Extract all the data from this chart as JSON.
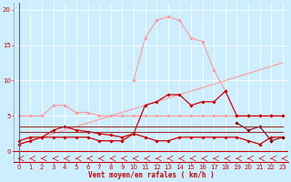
{
  "background_color": "#cceeff",
  "grid_color": "#ffffff",
  "x_labels": [
    0,
    1,
    2,
    3,
    4,
    5,
    6,
    7,
    8,
    9,
    10,
    11,
    12,
    13,
    14,
    15,
    16,
    17,
    18,
    19,
    20,
    21,
    22,
    23
  ],
  "xlabel": "Vent moyen/en rafales ( km/h )",
  "ylim": [
    -1.5,
    21
  ],
  "xlim": [
    -0.5,
    23.5
  ],
  "yticks": [
    0,
    5,
    10,
    15,
    20
  ],
  "lines": [
    {
      "color": "#ff9999",
      "linewidth": 0.8,
      "marker": "D",
      "markersize": 1.8,
      "data": [
        5,
        5,
        5,
        6.5,
        6.5,
        5.5,
        5.5,
        5,
        5,
        5,
        5,
        5,
        5,
        5,
        5,
        5,
        5,
        5,
        5,
        5,
        5,
        5,
        5,
        5
      ]
    },
    {
      "color": "#ff9999",
      "linewidth": 0.8,
      "marker": "D",
      "markersize": 1.8,
      "data": [
        null,
        null,
        null,
        null,
        null,
        null,
        null,
        null,
        null,
        null,
        10,
        16,
        18.5,
        19,
        18.5,
        16,
        15.5,
        11.5,
        8.5,
        null,
        null,
        null,
        null,
        null
      ]
    },
    {
      "color": "#ff9999",
      "linewidth": 0.8,
      "marker": null,
      "markersize": 0,
      "data": [
        1,
        1.5,
        2,
        2.5,
        3,
        3.5,
        4,
        4.5,
        5,
        5.5,
        6,
        6.5,
        7,
        7.5,
        8,
        8.5,
        9,
        9.5,
        10,
        10.5,
        11,
        11.5,
        12,
        12.5
      ]
    },
    {
      "color": "#cc0000",
      "linewidth": 0.9,
      "marker": "D",
      "markersize": 1.8,
      "data": [
        1.5,
        2,
        2,
        3,
        3.5,
        3,
        2.8,
        2.5,
        2.3,
        2,
        2.5,
        6.5,
        7,
        8,
        8,
        6.5,
        7,
        7,
        8.5,
        5,
        5,
        5,
        5,
        5
      ]
    },
    {
      "color": "#cc0000",
      "linewidth": 0.9,
      "marker": "D",
      "markersize": 1.8,
      "data": [
        1,
        1.5,
        2,
        2,
        2,
        2,
        2,
        1.5,
        1.5,
        1.5,
        2.5,
        2,
        1.5,
        1.5,
        2,
        2,
        2,
        2,
        2,
        2,
        1.5,
        1,
        2,
        2
      ]
    },
    {
      "color": "#880000",
      "linewidth": 0.8,
      "marker": "D",
      "markersize": 1.8,
      "data": [
        null,
        null,
        null,
        null,
        null,
        null,
        null,
        null,
        null,
        null,
        null,
        null,
        null,
        null,
        null,
        null,
        null,
        null,
        null,
        4,
        3,
        3.5,
        1.5,
        2
      ]
    },
    {
      "color": "#993333",
      "linewidth": 0.8,
      "marker": null,
      "markersize": 0,
      "data": [
        2.8,
        2.8,
        2.8,
        2.8,
        2.8,
        2.8,
        2.8,
        2.8,
        2.8,
        2.8,
        2.8,
        2.8,
        2.8,
        2.8,
        2.8,
        2.8,
        2.8,
        2.8,
        2.8,
        2.8,
        2.8,
        2.8,
        2.8,
        2.8
      ]
    },
    {
      "color": "#993333",
      "linewidth": 0.8,
      "marker": null,
      "markersize": 0,
      "data": [
        3.5,
        3.5,
        3.5,
        3.5,
        3.5,
        3.5,
        3.5,
        3.5,
        3.5,
        3.5,
        3.5,
        3.5,
        3.5,
        3.5,
        3.5,
        3.5,
        3.5,
        3.5,
        3.5,
        3.5,
        3.5,
        3.5,
        3.5,
        3.5
      ]
    }
  ],
  "axis_label_color": "#cc0000",
  "tick_color": "#cc0000",
  "tick_labelsize": 5,
  "xlabel_fontsize": 5.5
}
